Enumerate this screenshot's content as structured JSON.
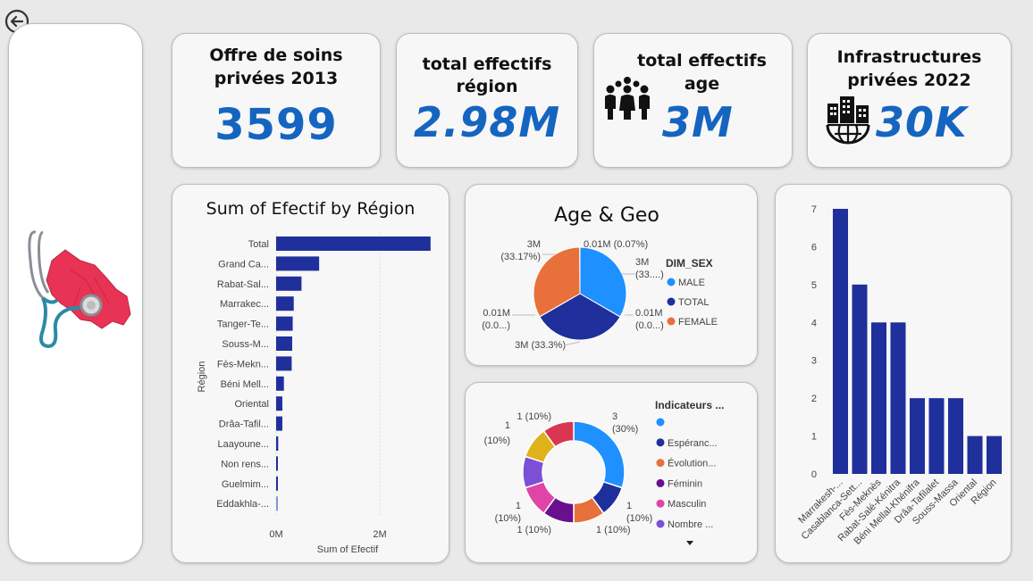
{
  "nav": {
    "back_icon": "arrow-left-circle-icon"
  },
  "kpis": [
    {
      "title_line1": "Offre de soins",
      "title_line2": "privées 2013",
      "value": "3599"
    },
    {
      "title_line1": "total effectifs",
      "title_line2": "région",
      "value": "2.98M"
    },
    {
      "title_line1": "total effectifs",
      "title_line2": "age",
      "value": "3M",
      "icon": "people-group-icon"
    },
    {
      "title_line1": "Infrastructures",
      "title_line2": "privées 2022",
      "value": "30K",
      "icon": "globe-buildings-icon"
    }
  ],
  "colors": {
    "navy": "#1f2f9c",
    "kpi_blue": "#1565c0",
    "light_blue": "#1e90ff",
    "orange": "#e8703a",
    "purple": "#6a0f8e",
    "pink": "#e044a7",
    "violet": "#7b4fd6",
    "crimson": "#d9364f",
    "gold": "#dfb21b",
    "map_red": "#e83354"
  },
  "chart_data": [
    {
      "id": "efectif-by-region",
      "type": "bar",
      "orientation": "horizontal",
      "title": "Sum of Efectif by Région",
      "xlabel": "Sum of Efectif",
      "ylabel": "Région",
      "categories": [
        "Total",
        "Grand Ca...",
        "Rabat-Sal...",
        "Marrakec...",
        "Tanger-Te...",
        "Souss-M...",
        "Fès-Mekn...",
        "Béni Mell...",
        "Oriental",
        "Drâa-Tafil...",
        "Laayoune...",
        "Non rens...",
        "Guelmim...",
        "Eddakhla-..."
      ],
      "values": [
        2980000,
        830000,
        490000,
        340000,
        320000,
        310000,
        300000,
        150000,
        120000,
        120000,
        40000,
        30000,
        30000,
        20000
      ],
      "xticks": [
        "0M",
        "2M"
      ],
      "xlim": [
        0,
        3000000
      ],
      "grid": true
    },
    {
      "id": "age-geo-pie",
      "type": "pie",
      "title": "Age & Geo",
      "legend_title": "DIM_SEX",
      "legend": [
        "MALE",
        "TOTAL",
        "FEMALE"
      ],
      "slices": [
        {
          "name": "MALE",
          "value": 33.3,
          "label": "3M",
          "sublabel": "(33....)"
        },
        {
          "name": "TOTAL",
          "value": 33.3,
          "label": "3M (33.3%)"
        },
        {
          "name": "FEMALE",
          "value": 33.17,
          "label": "3M",
          "sublabel": "(33.17%)"
        },
        {
          "name": "",
          "value": 0.07,
          "label": "0.01M (0.07%)"
        },
        {
          "name": "",
          "value": 0.07,
          "label": "0.01M",
          "sublabel": "(0.0...)"
        },
        {
          "name": "",
          "value": 0.07,
          "label": "0.01M",
          "sublabel": "(0.0...)"
        }
      ]
    },
    {
      "id": "indicateurs-donut",
      "type": "pie",
      "subtype": "donut",
      "legend_title": "Indicateurs ...",
      "legend": [
        "",
        "Espéranc...",
        "Évolution...",
        "Féminin",
        "Masculin",
        "Nombre ..."
      ],
      "slices": [
        {
          "name": "",
          "value": 3,
          "label": "3",
          "sublabel": "(30%)"
        },
        {
          "name": "Espéranc...",
          "value": 1,
          "label": "1",
          "sublabel": "(10%)"
        },
        {
          "name": "Évolution...",
          "value": 1,
          "label": "1 (10%)"
        },
        {
          "name": "Féminin",
          "value": 1,
          "label": "1 (10%)"
        },
        {
          "name": "Masculin",
          "value": 1,
          "label": "1",
          "sublabel": "(10%)"
        },
        {
          "name": "Nombre ...",
          "value": 1,
          "label": "1",
          "sublabel": "(10%)"
        },
        {
          "name": "",
          "value": 1,
          "label": "1 (10%)"
        },
        {
          "name": "",
          "value": 1,
          "label": "1 (10%)"
        }
      ]
    },
    {
      "id": "region-column",
      "type": "bar",
      "orientation": "vertical",
      "categories": [
        "Marrakesh-...",
        "Casablanca-Sett...",
        "Fès-Meknès",
        "Rabat-Salé-Kénitra",
        "Béni Mellal-Khénifra",
        "Drâa-Tafilalet",
        "Souss-Massa",
        "Oriental",
        "Région"
      ],
      "values": [
        7,
        5,
        4,
        4,
        2,
        2,
        2,
        1,
        1
      ],
      "yticks": [
        "0",
        "1",
        "2",
        "3",
        "4",
        "5",
        "6",
        "7"
      ],
      "ylim": [
        0,
        7
      ]
    }
  ]
}
